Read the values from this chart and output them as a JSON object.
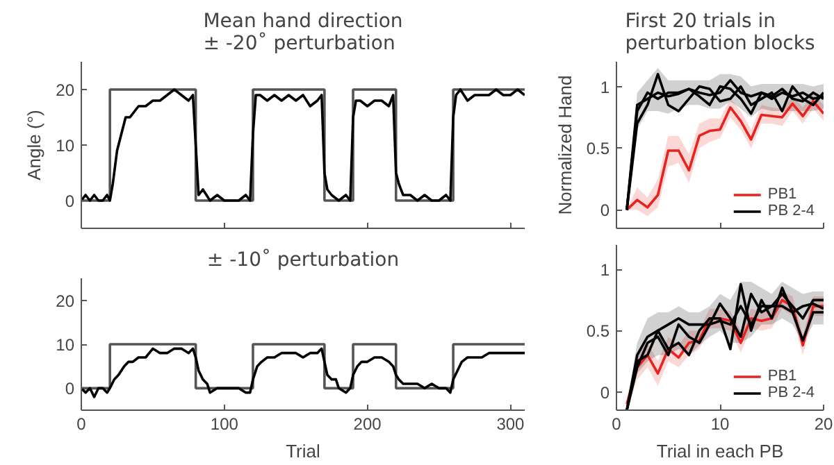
{
  "chart_data": [
    {
      "type": "line",
      "title": "Mean hand direction\n± -20˚ perturbation",
      "ylabel": "Angle (°)",
      "xlim": [
        0,
        310
      ],
      "ylim": [
        -5,
        25
      ],
      "xticks": [
        0,
        100,
        200,
        300
      ],
      "yticks": [
        0,
        10,
        20
      ],
      "tick_labels": "y",
      "series": [
        {
          "type": "step",
          "color": "#555555",
          "x": [
            0,
            20,
            80,
            120,
            170,
            190,
            220,
            260,
            310
          ],
          "values": [
            0,
            20,
            0,
            20,
            0,
            20,
            0,
            20,
            20
          ]
        },
        {
          "type": "line",
          "color": "#000000",
          "x": [
            0,
            3,
            6,
            9,
            12,
            15,
            18,
            20,
            22,
            25,
            28,
            31,
            34,
            37,
            40,
            45,
            50,
            55,
            60,
            65,
            70,
            75,
            78,
            80,
            82,
            85,
            90,
            95,
            100,
            105,
            110,
            115,
            118,
            120,
            122,
            125,
            130,
            135,
            140,
            145,
            150,
            155,
            160,
            165,
            168,
            170,
            172,
            175,
            180,
            185,
            188,
            190,
            192,
            195,
            200,
            205,
            210,
            215,
            218,
            220,
            222,
            225,
            230,
            235,
            240,
            245,
            250,
            255,
            258,
            260,
            262,
            265,
            270,
            275,
            280,
            285,
            290,
            295,
            300,
            305,
            310
          ],
          "values": [
            0,
            1,
            0,
            1,
            0,
            0,
            1,
            0,
            3,
            9,
            12,
            15,
            15,
            16,
            17,
            17,
            18,
            18,
            19,
            20,
            19,
            18,
            19,
            10,
            1,
            2,
            0,
            1,
            0,
            0,
            0,
            1,
            0,
            12,
            19,
            19,
            18,
            19,
            18,
            19,
            18,
            19,
            17,
            18,
            19,
            5,
            2,
            1,
            0,
            1,
            0,
            15,
            18,
            18,
            17,
            18,
            18,
            17,
            19,
            5,
            3,
            1,
            1,
            0,
            1,
            0,
            0,
            1,
            0,
            15,
            19,
            20,
            18,
            19,
            19,
            19,
            20,
            19,
            19,
            20,
            19
          ]
        }
      ]
    },
    {
      "type": "line",
      "title": "± -10˚ perturbation",
      "xlabel": "Trial",
      "xlim": [
        0,
        310
      ],
      "ylim": [
        -5,
        25
      ],
      "xticks": [
        0,
        100,
        200,
        300
      ],
      "yticks": [
        0,
        10,
        20
      ],
      "series": [
        {
          "type": "step",
          "color": "#555555",
          "x": [
            0,
            20,
            80,
            120,
            170,
            190,
            220,
            260,
            310
          ],
          "values": [
            0,
            10,
            0,
            10,
            0,
            10,
            0,
            10,
            10
          ]
        },
        {
          "type": "line",
          "color": "#000000",
          "x": [
            0,
            3,
            6,
            9,
            12,
            15,
            18,
            20,
            23,
            26,
            30,
            33,
            36,
            40,
            45,
            50,
            55,
            60,
            65,
            70,
            75,
            78,
            80,
            82,
            85,
            88,
            90,
            95,
            100,
            105,
            110,
            115,
            118,
            120,
            123,
            126,
            130,
            135,
            140,
            145,
            150,
            155,
            160,
            165,
            168,
            170,
            172,
            175,
            178,
            180,
            185,
            188,
            190,
            193,
            196,
            200,
            205,
            210,
            215,
            218,
            220,
            222,
            225,
            230,
            235,
            240,
            245,
            250,
            255,
            258,
            260,
            263,
            266,
            270,
            275,
            280,
            285,
            290,
            295,
            300,
            305,
            310
          ],
          "values": [
            0,
            -1,
            0,
            -2,
            0,
            0,
            -1,
            0,
            2,
            3,
            5,
            6,
            6,
            7,
            7,
            9,
            8,
            8,
            9,
            9,
            8,
            9,
            7,
            4,
            2,
            1,
            -1,
            0,
            0,
            0,
            0,
            -1,
            -1,
            2,
            5,
            6,
            7,
            7,
            8,
            8,
            8,
            7,
            8,
            8,
            9,
            6,
            3,
            2,
            2,
            0,
            -1,
            0,
            3,
            5,
            6,
            6,
            7,
            7,
            6,
            5,
            3,
            2,
            1,
            1,
            1,
            0,
            1,
            0,
            0,
            -1,
            2,
            4,
            6,
            7,
            7,
            7,
            8,
            8,
            8,
            8,
            8,
            8
          ]
        }
      ]
    },
    {
      "type": "line",
      "title": "First 20 trials in\nperturbation blocks",
      "ylabel": "Normalized Hand",
      "xlim": [
        0,
        20
      ],
      "ylim": [
        -0.15,
        1.2
      ],
      "xticks": [
        0,
        10,
        20
      ],
      "yticks": [
        0,
        0.5,
        1
      ],
      "tick_labels": "y",
      "legend": "bottom right",
      "x": [
        1,
        2,
        3,
        4,
        5,
        6,
        7,
        8,
        9,
        10,
        11,
        12,
        13,
        14,
        15,
        16,
        17,
        18,
        19,
        20
      ],
      "series": [
        {
          "name": "PB1",
          "color": "#e8221e",
          "values": [
            0,
            0.08,
            0.02,
            0.12,
            0.48,
            0.48,
            0.32,
            0.6,
            0.64,
            0.65,
            0.83,
            0.72,
            0.57,
            0.77,
            0.76,
            0.75,
            0.86,
            0.76,
            0.88,
            0.78
          ],
          "lower": [
            0,
            0,
            -0.05,
            0.02,
            0.35,
            0.38,
            0.22,
            0.5,
            0.55,
            0.58,
            0.75,
            0.65,
            0.5,
            0.7,
            0.7,
            0.68,
            0.8,
            0.7,
            0.82,
            0.72
          ],
          "upper": [
            0,
            0.18,
            0.1,
            0.25,
            0.6,
            0.6,
            0.45,
            0.7,
            0.74,
            0.74,
            0.9,
            0.8,
            0.65,
            0.85,
            0.83,
            0.82,
            0.92,
            0.83,
            0.94,
            0.85
          ]
        },
        {
          "name": "PB 2-4",
          "color": "#000000",
          "values": [
            0,
            0.85,
            0.9,
            0.95,
            0.92,
            0.94,
            0.98,
            0.95,
            0.93,
            0.95,
            1.05,
            0.95,
            0.92,
            0.95,
            0.9,
            0.95,
            0.92,
            0.95,
            0.9,
            0.92
          ],
          "lower": [
            0,
            0.65,
            0.8,
            0.8,
            0.78,
            0.82,
            0.85,
            0.85,
            0.82,
            0.82,
            0.88,
            0.82,
            0.75,
            0.82,
            0.8,
            0.8,
            0.8,
            0.8,
            0.8,
            0.82
          ],
          "upper": [
            0,
            0.95,
            1.05,
            1.15,
            1.05,
            1.05,
            1.05,
            1.05,
            1.05,
            1.1,
            1.1,
            1.08,
            1.0,
            1.02,
            1.02,
            1.02,
            1.02,
            1.02,
            1.0,
            1.02
          ]
        },
        {
          "color": "#000000",
          "values": [
            0,
            0.7,
            0.85,
            1.1,
            0.85,
            0.8,
            0.9,
            1.0,
            0.98,
            0.88,
            0.9,
            1.0,
            0.85,
            0.9,
            0.95,
            0.8,
            1.0,
            0.9,
            0.85,
            0.95
          ]
        },
        {
          "color": "#000000",
          "values": [
            0,
            0.8,
            0.95,
            0.9,
            0.95,
            0.95,
            0.98,
            0.92,
            0.85,
            1.0,
            0.98,
            0.9,
            0.78,
            0.95,
            0.92,
            0.98,
            0.9,
            0.88,
            0.95,
            0.9
          ]
        }
      ]
    },
    {
      "type": "line",
      "xlabel": "Trial in each PB",
      "xlim": [
        0,
        20
      ],
      "ylim": [
        -0.15,
        1.2
      ],
      "xticks": [
        0,
        10,
        20
      ],
      "yticks": [
        0,
        0.5,
        1
      ],
      "legend": "bottom right",
      "x": [
        1,
        2,
        3,
        4,
        5,
        6,
        7,
        8,
        9,
        10,
        11,
        12,
        13,
        14,
        15,
        16,
        17,
        18,
        19,
        20
      ],
      "series": [
        {
          "name": "PB1",
          "color": "#e8221e",
          "values": [
            -0.1,
            0.2,
            0.3,
            0.15,
            0.35,
            0.28,
            0.4,
            0.42,
            0.6,
            0.6,
            0.58,
            0.4,
            0.6,
            0.58,
            0.6,
            0.75,
            0.7,
            0.38,
            0.7,
            0.7
          ],
          "lower": [
            -0.15,
            0.1,
            0.2,
            0.05,
            0.25,
            0.2,
            0.3,
            0.35,
            0.52,
            0.52,
            0.5,
            0.32,
            0.52,
            0.5,
            0.52,
            0.68,
            0.62,
            0.3,
            0.62,
            0.62
          ],
          "upper": [
            -0.05,
            0.3,
            0.4,
            0.25,
            0.45,
            0.38,
            0.5,
            0.5,
            0.68,
            0.68,
            0.66,
            0.5,
            0.68,
            0.66,
            0.68,
            0.82,
            0.78,
            0.46,
            0.78,
            0.78
          ]
        },
        {
          "name": "PB 2-4",
          "color": "#000000",
          "values": [
            -0.15,
            0.3,
            0.45,
            0.5,
            0.55,
            0.6,
            0.55,
            0.55,
            0.55,
            0.72,
            0.6,
            0.45,
            0.8,
            0.65,
            0.7,
            0.8,
            0.7,
            0.6,
            0.75,
            0.75
          ],
          "lower": [
            -0.15,
            0.15,
            0.25,
            0.3,
            0.3,
            0.35,
            0.3,
            0.38,
            0.45,
            0.5,
            0.4,
            0.4,
            0.45,
            0.55,
            0.55,
            0.6,
            0.55,
            0.4,
            0.55,
            0.55
          ],
          "upper": [
            -0.1,
            0.4,
            0.6,
            0.65,
            0.65,
            0.7,
            0.65,
            0.65,
            0.7,
            0.8,
            0.75,
            0.9,
            0.9,
            0.85,
            0.8,
            0.9,
            0.85,
            0.8,
            0.82,
            0.82
          ]
        },
        {
          "color": "#000000",
          "values": [
            -0.15,
            0.25,
            0.3,
            0.5,
            0.35,
            0.4,
            0.3,
            0.5,
            0.6,
            0.6,
            0.35,
            0.88,
            0.5,
            0.75,
            0.6,
            0.85,
            0.65,
            0.7,
            0.72,
            0.68
          ]
        },
        {
          "color": "#000000",
          "values": [
            -0.15,
            0.2,
            0.4,
            0.45,
            0.3,
            0.55,
            0.45,
            0.4,
            0.55,
            0.58,
            0.55,
            0.7,
            0.55,
            0.7,
            0.7,
            0.7,
            0.65,
            0.42,
            0.65,
            0.65
          ]
        }
      ]
    }
  ]
}
